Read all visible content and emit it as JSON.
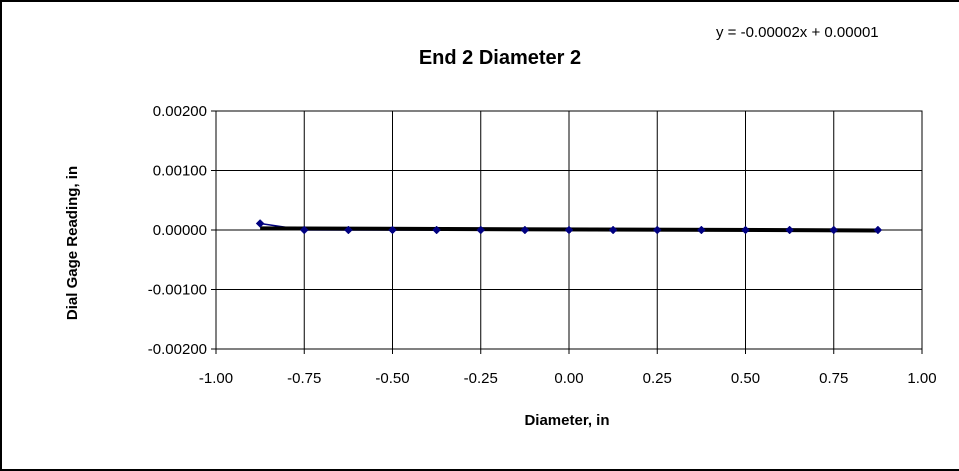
{
  "chart_data": {
    "type": "scatter",
    "title": "End 2 Diameter 2",
    "xlabel": "Diameter, in",
    "ylabel": "Dial Gage Reading, in",
    "xlim": [
      -1.0,
      1.0
    ],
    "ylim": [
      -0.002,
      0.002
    ],
    "x_ticks": [
      -1.0,
      -0.75,
      -0.5,
      -0.25,
      0.0,
      0.25,
      0.5,
      0.75,
      1.0
    ],
    "x_tick_labels": [
      "-1.00",
      "-0.75",
      "-0.50",
      "-0.25",
      "0.00",
      "0.25",
      "0.50",
      "0.75",
      "1.00"
    ],
    "y_ticks": [
      0.002,
      0.001,
      0.0,
      -0.001,
      -0.002
    ],
    "y_tick_labels": [
      "0.00200",
      "0.00100",
      "0.00000",
      "-0.00100",
      "-0.00200"
    ],
    "grid": true,
    "series": [
      {
        "x": [
          -0.875,
          -0.75,
          -0.625,
          -0.5,
          -0.375,
          -0.25,
          -0.125,
          0.0,
          0.125,
          0.25,
          0.375,
          0.5,
          0.625,
          0.75,
          0.875
        ],
        "y": [
          0.00011,
          0.0,
          0.0,
          0.0,
          0.0,
          0.0,
          0.0,
          0.0,
          0.0,
          0.0,
          0.0,
          0.0,
          0.0,
          0.0,
          0.0
        ],
        "color": "#000080"
      }
    ],
    "trendline": {
      "equation": "y = -0.00002x + 0.00001",
      "slope": -2e-05,
      "intercept": 1e-05,
      "color": "#000000"
    }
  }
}
